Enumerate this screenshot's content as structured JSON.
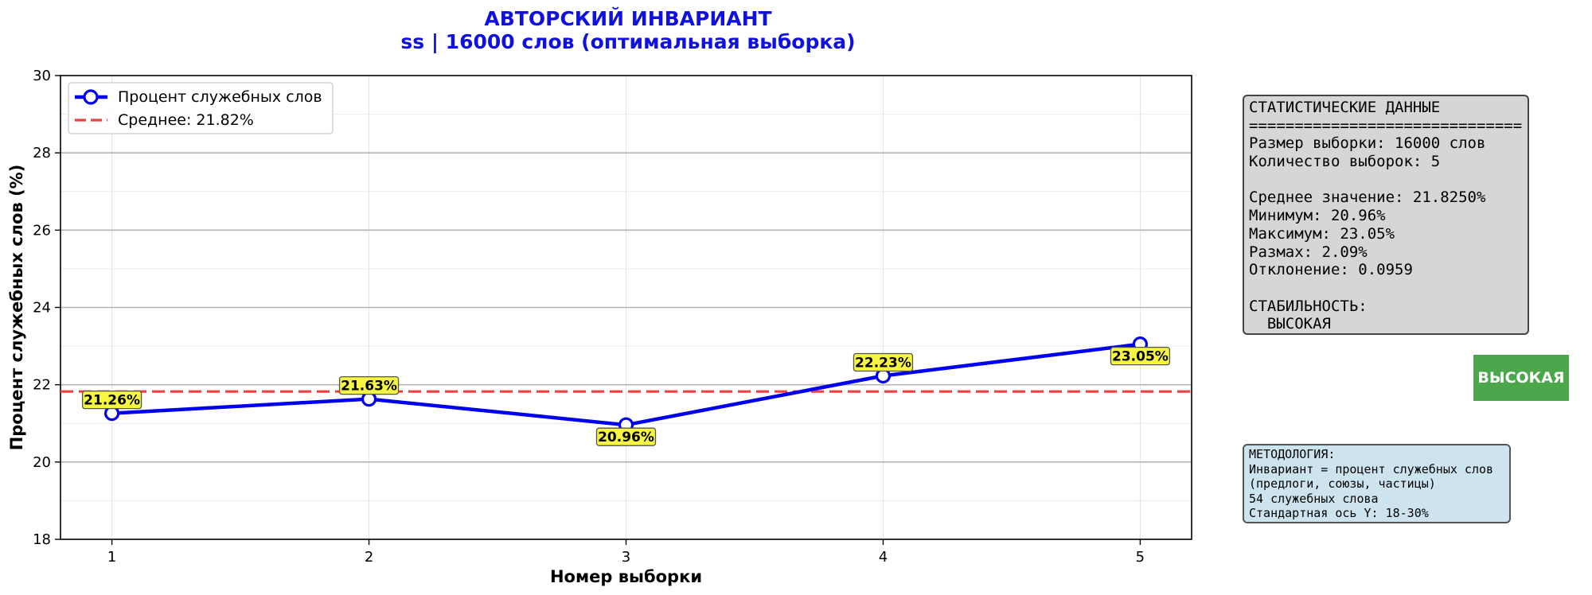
{
  "chart_title_line1": "АВТОРСКИЙ ИНВАРИАНТ",
  "chart_title_line2": "ss | 16000 слов (оптимальная выборка)",
  "colors": {
    "title": "#1010e0",
    "series": "#0000ee",
    "mean_line": "#f04040",
    "label_bg": "#f5f542",
    "stats_bg": "#d6d6d6",
    "badge_bg": "#4ca64c",
    "method_bg": "#cde4ee"
  },
  "chart_data": {
    "type": "line",
    "xlabel": "Номер выборки",
    "ylabel": "Процент служебных слов (%)",
    "x": [
      1,
      2,
      3,
      4,
      5
    ],
    "xlim": [
      0.8,
      5.2
    ],
    "ylim": [
      18,
      30
    ],
    "x_ticks": [
      "1",
      "2",
      "3",
      "4",
      "5"
    ],
    "y_ticks": [
      "18",
      "20",
      "22",
      "24",
      "26",
      "28",
      "30"
    ],
    "grid": true,
    "legend_position": "top-left",
    "series": [
      {
        "name": "Процент служебных слов",
        "values": [
          21.26,
          21.63,
          20.96,
          22.23,
          23.05
        ],
        "point_labels": [
          "21.26%",
          "21.63%",
          "20.96%",
          "22.23%",
          "23.05%"
        ],
        "label_side": [
          "above",
          "above",
          "below",
          "above",
          "below"
        ]
      }
    ],
    "mean_line": {
      "name": "Среднее: 21.82%",
      "value": 21.825
    }
  },
  "stats_panel": {
    "lines": [
      "СТАТИСТИЧЕСКИЕ ДАННЫЕ",
      "==============================",
      "Размер выборки: 16000 слов",
      "Количество выборок: 5",
      "",
      "Среднее значение: 21.8250%",
      "Минимум: 20.96%",
      "Максимум: 23.05%",
      "Размах: 2.09%",
      "Отклонение: 0.0959",
      "",
      "СТАБИЛЬНОСТЬ:",
      "  ВЫСОКАЯ"
    ]
  },
  "stability_badge": "ВЫСОКАЯ",
  "methodology_panel": {
    "lines": [
      "МЕТОДОЛОГИЯ:",
      "Инвариант = процент служебных слов",
      "(предлоги, союзы, частицы)",
      "54 служебных слова",
      "Стандартная ось Y: 18-30%"
    ]
  }
}
